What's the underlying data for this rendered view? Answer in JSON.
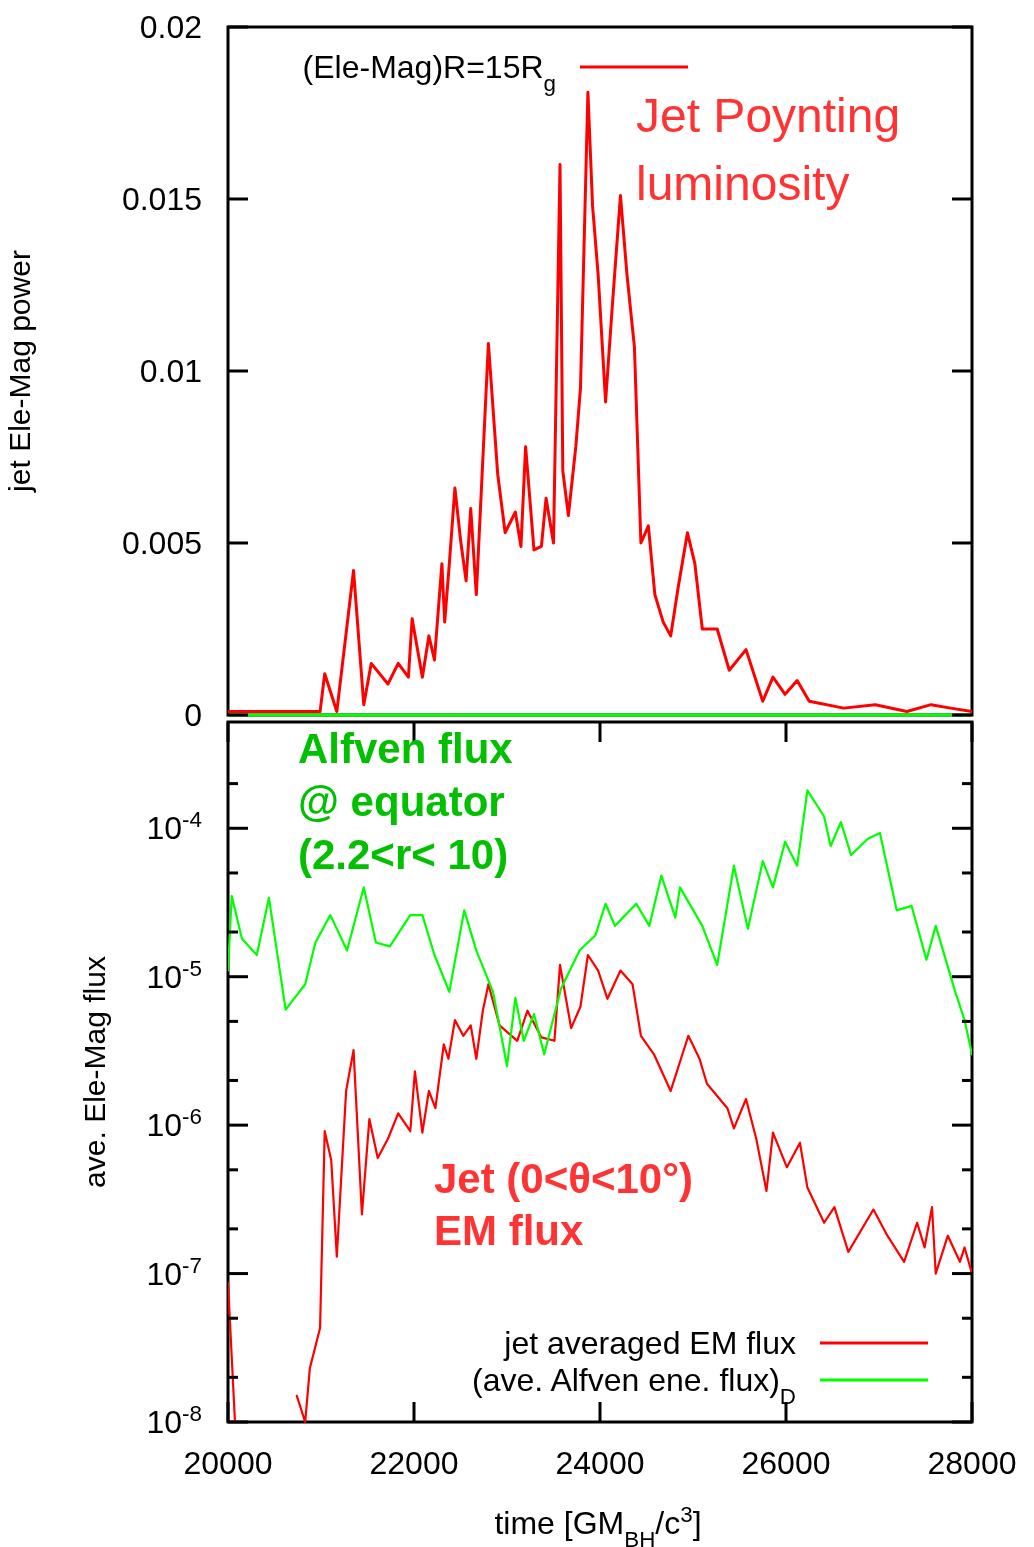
{
  "chart_data": [
    {
      "type": "line",
      "ylabel": "jet Ele-Mag power",
      "xlim": [
        20000,
        28000
      ],
      "ylim": [
        0,
        0.02
      ],
      "yticks": [
        0,
        0.005,
        0.01,
        0.015,
        0.02
      ],
      "tick_labels": "y",
      "legend": "top",
      "annotations": [
        "Jet Poynting\nluminosity"
      ],
      "series": [
        {
          "name": "(Ele-Mag)R=15R$_{g}$",
          "color": "#ff0000",
          "x": [
            20000,
            20990,
            21040,
            21170,
            21350,
            21460,
            21540,
            21720,
            21830,
            21940,
            21980,
            22090,
            22160,
            22220,
            22300,
            22330,
            22380,
            22440,
            22500,
            22560,
            22610,
            22670,
            22720,
            22800,
            22900,
            22980,
            23090,
            23150,
            23200,
            23290,
            23370,
            23420,
            23500,
            23570,
            23600,
            23660,
            23740,
            23790,
            23870,
            23920,
            23980,
            24060,
            24130,
            24220,
            24290,
            24370,
            24440,
            24520,
            24590,
            24680,
            24760,
            24840,
            24940,
            25020,
            25100,
            25260,
            25390,
            25570,
            25750,
            25860,
            25990,
            26120,
            26250,
            26620,
            26960,
            27300,
            27560,
            27770,
            28000
          ],
          "values": [
            0.0001,
            0.0001,
            0.0012,
            0.0001,
            0.0042,
            0.0003,
            0.0015,
            0.0009,
            0.0015,
            0.0011,
            0.0028,
            0.0011,
            0.0023,
            0.0016,
            0.0044,
            0.0027,
            0.0044,
            0.0066,
            0.0051,
            0.0039,
            0.006,
            0.0035,
            0.0063,
            0.0108,
            0.007,
            0.0053,
            0.0059,
            0.0049,
            0.0078,
            0.0048,
            0.0049,
            0.0063,
            0.005,
            0.016,
            0.0071,
            0.0058,
            0.0078,
            0.0095,
            0.0181,
            0.0148,
            0.0128,
            0.0091,
            0.0118,
            0.0151,
            0.0128,
            0.0107,
            0.005,
            0.0055,
            0.0035,
            0.0027,
            0.0023,
            0.0037,
            0.0053,
            0.0044,
            0.0025,
            0.0025,
            0.0013,
            0.0019,
            0.0004,
            0.0011,
            0.0006,
            0.001,
            0.0004,
            0.0002,
            0.0003,
            0.0001,
            0.0003,
            0.0002,
            0.0001
          ]
        },
        {
          "color": "#00ff00",
          "x": [
            20000,
            28000
          ],
          "values": [
            0,
            0
          ]
        }
      ]
    },
    {
      "type": "line",
      "xlabel": "time [GM$_{BH}$/c$^{3}$]",
      "ylabel": "ave. Ele-Mag flux",
      "log": "y",
      "xlim": [
        20000,
        28000
      ],
      "xticks": [
        20000,
        22000,
        24000,
        26000,
        28000
      ],
      "ylim": [
        1e-08,
        0.00052
      ],
      "yticks": [
        {
          "value": 0.0002,
          "label": null
        },
        {
          "value": 0.0001,
          "label": "10$^{-4}$"
        },
        {
          "value": 5e-05,
          "label": null
        },
        {
          "value": 2e-05,
          "label": null
        },
        {
          "value": 1e-05,
          "label": "10$^{-5}$"
        },
        {
          "value": 5e-06,
          "label": null
        },
        {
          "value": 2e-06,
          "label": null
        },
        {
          "value": 1e-06,
          "label": "10$^{-6}$"
        },
        {
          "value": 5e-07,
          "label": null
        },
        {
          "value": 2e-07,
          "label": null
        },
        {
          "value": 1e-07,
          "label": "10$^{-7}$"
        },
        {
          "value": 5e-08,
          "label": null
        },
        {
          "value": 2e-08,
          "label": null
        },
        {
          "value": 1e-08,
          "label": "10$^{-8}$"
        }
      ],
      "legend": "bottom right",
      "annotations": [
        "Alfven flux\n@ equator\n(2.2<r< 10)",
        "Jet (0<θ<10°)\nEM flux"
      ],
      "series": [
        {
          "name": "jet averaged EM flux",
          "color": "#ff0000",
          "x": [
            20000,
            20075,
            20100,
            20700,
            20740,
            20830,
            20880,
            20990,
            21040,
            21110,
            21170,
            21270,
            21350,
            21440,
            21520,
            21610,
            21720,
            21830,
            21960,
            22010,
            22090,
            22160,
            22230,
            22320,
            22370,
            22440,
            22530,
            22610,
            22670,
            22740,
            22800,
            22920,
            23110,
            23220,
            23370,
            23510,
            23570,
            23690,
            23790,
            23870,
            23980,
            24080,
            24220,
            24350,
            24440,
            24580,
            24760,
            24950,
            25070,
            25150,
            25370,
            25440,
            25570,
            25680,
            25790,
            25860,
            26010,
            26150,
            26230,
            26410,
            26520,
            26670,
            26940,
            27090,
            27270,
            27410,
            27490,
            27570,
            27610,
            27740,
            27870,
            27920,
            28000
          ],
          "values": [
            8.7e-08,
            1e-08,
            null,
            null,
            1.5e-08,
            1e-08,
            2.3e-08,
            4.3e-08,
            9.1e-07,
            5.8e-07,
            1.3e-07,
            1.7e-06,
            3.2e-06,
            2.5e-07,
            1.1e-06,
            6e-07,
            8.1e-07,
            1.2e-06,
            9.1e-07,
            2.3e-06,
            8.9e-07,
            1.7e-06,
            1.3e-06,
            3.5e-06,
            2.8e-06,
            5.1e-06,
            4e-06,
            4.7e-06,
            2.8e-06,
            5.9e-06,
            8.9e-06,
            4.7e-06,
            3.7e-06,
            5.9e-06,
            3.9e-06,
            3.7e-06,
            1.2e-05,
            4.5e-06,
            6.3e-06,
            1.4e-05,
            1.1e-05,
            7.1e-06,
            1.1e-05,
            8.9e-06,
            4e-06,
            3e-06,
            1.7e-06,
            4e-06,
            2.8e-06,
            1.9e-06,
            1.3e-06,
            9.5e-07,
            1.5e-06,
            8.1e-07,
            3.6e-07,
            8.9e-07,
            5.2e-07,
            7.6e-07,
            3.8e-07,
            2.2e-07,
            2.8e-07,
            1.4e-07,
            2.7e-07,
            1.8e-07,
            1.2e-07,
            2.2e-07,
            1.5e-07,
            2.8e-07,
            1e-07,
            1.8e-07,
            1.2e-07,
            1.5e-07,
            1e-07
          ]
        },
        {
          "name": "(ave. Alfven ene. flux)$_{D}$",
          "color": "#00ff00",
          "x": [
            20000,
            20040,
            20150,
            20310,
            20440,
            20620,
            20830,
            20940,
            21100,
            21280,
            21460,
            21590,
            21740,
            21960,
            22090,
            22220,
            22380,
            22540,
            22670,
            22850,
            23000,
            23090,
            23180,
            23290,
            23400,
            23580,
            23780,
            23950,
            24060,
            24160,
            24390,
            24530,
            24660,
            24810,
            24860,
            25100,
            25260,
            25440,
            25590,
            25750,
            25860,
            25990,
            26120,
            26230,
            26410,
            26480,
            26590,
            26700,
            26880,
            27010,
            27190,
            27350,
            27510,
            27610,
            27820,
            27920,
            28000
          ],
          "values": [
            1.1e-05,
            3.5e-05,
            1.8e-05,
            1.4e-05,
            3.4e-05,
            6e-06,
            8.9e-06,
            1.7e-05,
            2.6e-05,
            1.5e-05,
            4e-05,
            1.7e-05,
            1.6e-05,
            2.6e-05,
            2.6e-05,
            1.4e-05,
            7.9e-06,
            2.8e-05,
            1.5e-05,
            7.9e-06,
            2.5e-06,
            7.2e-06,
            3.7e-06,
            5.6e-06,
            3e-06,
            8.3e-06,
            1.5e-05,
            1.9e-05,
            3.1e-05,
            2.2e-05,
            3.1e-05,
            2.2e-05,
            4.8e-05,
            2.5e-05,
            4e-05,
            2.2e-05,
            1.2e-05,
            5.6e-05,
            2.1e-05,
            6e-05,
            4e-05,
            8.1e-05,
            5.6e-05,
            0.00018,
            0.00012,
            7.6e-05,
            0.00011,
            6.6e-05,
            8.5e-05,
            9.3e-05,
            2.8e-05,
            3e-05,
            1.3e-05,
            2.2e-05,
            7.9e-06,
            5.1e-06,
            3e-06
          ]
        }
      ]
    }
  ]
}
